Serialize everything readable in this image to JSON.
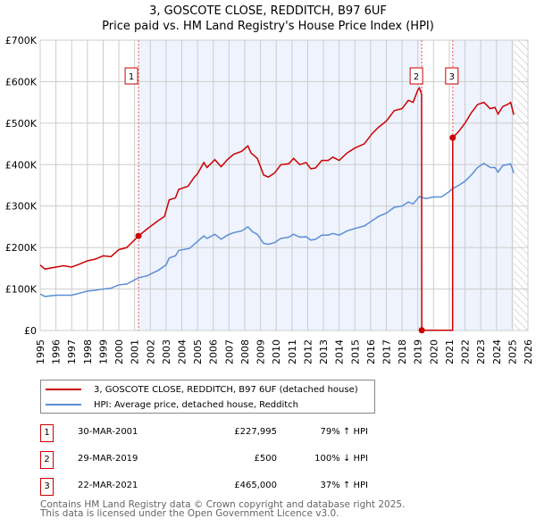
{
  "chart_data": {
    "type": "line",
    "title": "3, GOSCOTE CLOSE, REDDITCH, B97 6UF",
    "subtitle": "Price paid vs. HM Land Registry's House Price Index (HPI)",
    "xlim": [
      1995,
      2026
    ],
    "ylim": [
      0,
      700000
    ],
    "x_ticks": [
      "1995",
      "1996",
      "1997",
      "1998",
      "1999",
      "2000",
      "2001",
      "2002",
      "2003",
      "2004",
      "2005",
      "2006",
      "2007",
      "2008",
      "2009",
      "2010",
      "2011",
      "2012",
      "2013",
      "2014",
      "2015",
      "2016",
      "2017",
      "2018",
      "2019",
      "2020",
      "2021",
      "2022",
      "2023",
      "2024",
      "2025",
      "2026"
    ],
    "y_ticks": [
      {
        "v": 0,
        "label": "£0"
      },
      {
        "v": 100000,
        "label": "£100K"
      },
      {
        "v": 200000,
        "label": "£200K"
      },
      {
        "v": 300000,
        "label": "£300K"
      },
      {
        "v": 400000,
        "label": "£400K"
      },
      {
        "v": 500000,
        "label": "£500K"
      },
      {
        "v": 600000,
        "label": "£600K"
      },
      {
        "v": 700000,
        "label": "£700K"
      }
    ],
    "grid": true,
    "forecast_hatch_from": 2025.1,
    "series": [
      {
        "name": "3, GOSCOTE CLOSE, REDDITCH, B97 6UF (detached house)",
        "color": "#cc0000",
        "points": [
          [
            1995,
            158000
          ],
          [
            1995.3,
            148000
          ],
          [
            1996,
            153000
          ],
          [
            1996.5,
            156000
          ],
          [
            1997,
            153000
          ],
          [
            1997.5,
            160000
          ],
          [
            1998,
            168000
          ],
          [
            1998.5,
            172000
          ],
          [
            1999,
            180000
          ],
          [
            1999.5,
            178000
          ],
          [
            2000,
            195000
          ],
          [
            2000.5,
            200000
          ],
          [
            2001.25,
            227995
          ],
          [
            2001.8,
            245000
          ],
          [
            2002.5,
            265000
          ],
          [
            2002.9,
            275000
          ],
          [
            2003.2,
            315000
          ],
          [
            2003.6,
            320000
          ],
          [
            2003.8,
            340000
          ],
          [
            2004.4,
            348000
          ],
          [
            2004.8,
            370000
          ],
          [
            2005,
            378000
          ],
          [
            2005.4,
            405000
          ],
          [
            2005.6,
            393000
          ],
          [
            2006.1,
            412000
          ],
          [
            2006.5,
            395000
          ],
          [
            2006.9,
            412000
          ],
          [
            2007.3,
            425000
          ],
          [
            2007.8,
            432000
          ],
          [
            2008.2,
            445000
          ],
          [
            2008.4,
            428000
          ],
          [
            2008.8,
            415000
          ],
          [
            2009.2,
            375000
          ],
          [
            2009.5,
            370000
          ],
          [
            2009.9,
            380000
          ],
          [
            2010.3,
            400000
          ],
          [
            2010.8,
            402000
          ],
          [
            2011.1,
            415000
          ],
          [
            2011.5,
            400000
          ],
          [
            2011.9,
            405000
          ],
          [
            2012.2,
            390000
          ],
          [
            2012.5,
            392000
          ],
          [
            2012.9,
            410000
          ],
          [
            2013.3,
            410000
          ],
          [
            2013.6,
            418000
          ],
          [
            2014,
            410000
          ],
          [
            2014.5,
            428000
          ],
          [
            2015,
            440000
          ],
          [
            2015.6,
            450000
          ],
          [
            2016.1,
            475000
          ],
          [
            2016.5,
            490000
          ],
          [
            2017,
            505000
          ],
          [
            2017.5,
            530000
          ],
          [
            2018,
            535000
          ],
          [
            2018.4,
            555000
          ],
          [
            2018.7,
            550000
          ],
          [
            2019.0,
            580000
          ],
          [
            2019.1,
            585000
          ],
          [
            2019.24,
            570000
          ],
          [
            2019.25,
            500
          ],
          [
            2021.21,
            500
          ],
          [
            2021.22,
            465000
          ],
          [
            2021.6,
            480000
          ],
          [
            2022,
            500000
          ],
          [
            2022.4,
            525000
          ],
          [
            2022.8,
            545000
          ],
          [
            2023.2,
            550000
          ],
          [
            2023.6,
            535000
          ],
          [
            2023.9,
            538000
          ],
          [
            2024.1,
            522000
          ],
          [
            2024.4,
            540000
          ],
          [
            2024.7,
            545000
          ],
          [
            2024.9,
            550000
          ],
          [
            2025.1,
            520000
          ]
        ]
      },
      {
        "name": "HPI: Average price, detached house, Redditch",
        "color": "#5b8fd4",
        "points": [
          [
            1995,
            88000
          ],
          [
            1995.3,
            82000
          ],
          [
            1996,
            85000
          ],
          [
            1996.5,
            85000
          ],
          [
            1997,
            85000
          ],
          [
            1997.5,
            90000
          ],
          [
            1998,
            95000
          ],
          [
            1998.5,
            97000
          ],
          [
            1999,
            100000
          ],
          [
            1999.5,
            102000
          ],
          [
            2000,
            110000
          ],
          [
            2000.5,
            112000
          ],
          [
            2001.25,
            127000
          ],
          [
            2001.8,
            132000
          ],
          [
            2002.5,
            145000
          ],
          [
            2003,
            158000
          ],
          [
            2003.2,
            175000
          ],
          [
            2003.6,
            180000
          ],
          [
            2003.8,
            193000
          ],
          [
            2004.5,
            198000
          ],
          [
            2005,
            215000
          ],
          [
            2005.4,
            228000
          ],
          [
            2005.6,
            222000
          ],
          [
            2006.1,
            232000
          ],
          [
            2006.5,
            220000
          ],
          [
            2006.9,
            230000
          ],
          [
            2007.3,
            236000
          ],
          [
            2007.8,
            240000
          ],
          [
            2008.2,
            250000
          ],
          [
            2008.5,
            238000
          ],
          [
            2008.8,
            232000
          ],
          [
            2009.2,
            210000
          ],
          [
            2009.5,
            208000
          ],
          [
            2009.9,
            212000
          ],
          [
            2010.3,
            222000
          ],
          [
            2010.8,
            225000
          ],
          [
            2011.1,
            232000
          ],
          [
            2011.5,
            225000
          ],
          [
            2011.9,
            226000
          ],
          [
            2012.2,
            218000
          ],
          [
            2012.5,
            220000
          ],
          [
            2012.9,
            230000
          ],
          [
            2013.3,
            230000
          ],
          [
            2013.6,
            234000
          ],
          [
            2014,
            230000
          ],
          [
            2014.5,
            240000
          ],
          [
            2015,
            246000
          ],
          [
            2015.6,
            252000
          ],
          [
            2016.1,
            265000
          ],
          [
            2016.5,
            275000
          ],
          [
            2017,
            283000
          ],
          [
            2017.5,
            297000
          ],
          [
            2018,
            300000
          ],
          [
            2018.4,
            310000
          ],
          [
            2018.7,
            305000
          ],
          [
            2019.1,
            323000
          ],
          [
            2019.5,
            318000
          ],
          [
            2020,
            322000
          ],
          [
            2020.5,
            322000
          ],
          [
            2021,
            335000
          ],
          [
            2021.2,
            342000
          ],
          [
            2021.6,
            350000
          ],
          [
            2022,
            360000
          ],
          [
            2022.4,
            375000
          ],
          [
            2022.8,
            393000
          ],
          [
            2023.2,
            403000
          ],
          [
            2023.6,
            393000
          ],
          [
            2023.9,
            393000
          ],
          [
            2024.1,
            382000
          ],
          [
            2024.4,
            398000
          ],
          [
            2024.7,
            400000
          ],
          [
            2024.9,
            402000
          ],
          [
            2025.1,
            380000
          ]
        ]
      }
    ],
    "sales": [
      {
        "label": "1",
        "x": 2001.25,
        "y": 227995
      },
      {
        "label": "2",
        "x": 2019.25,
        "y": 500
      },
      {
        "label": "3",
        "x": 2021.22,
        "y": 465000
      }
    ]
  },
  "legend": [
    "3, GOSCOTE CLOSE, REDDITCH, B97 6UF (detached house)",
    "HPI: Average price, detached house, Redditch"
  ],
  "transactions": [
    {
      "num": "1",
      "date": "30-MAR-2001",
      "price": "£227,995",
      "hpi": "79% ↑ HPI"
    },
    {
      "num": "2",
      "date": "29-MAR-2019",
      "price": "£500",
      "hpi": "100% ↓ HPI"
    },
    {
      "num": "3",
      "date": "22-MAR-2021",
      "price": "£465,000",
      "hpi": "37% ↑ HPI"
    }
  ],
  "footer": [
    "Contains HM Land Registry data © Crown copyright and database right 2025.",
    "This data is licensed under the Open Government Licence v3.0."
  ]
}
